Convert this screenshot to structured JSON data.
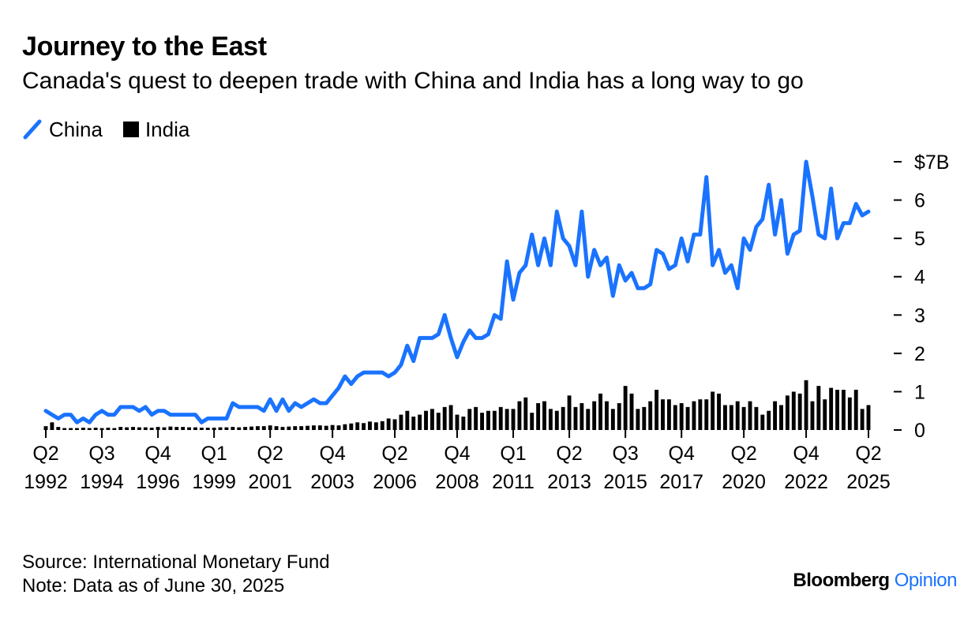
{
  "header": {
    "title": "Journey to the East",
    "subtitle": "Canada's quest to deepen trade with China and India has a long way to go"
  },
  "legend": [
    {
      "label": "China",
      "color": "#1a73ff",
      "shape": "line"
    },
    {
      "label": "India",
      "color": "#000000",
      "shape": "square"
    }
  ],
  "chart_data": {
    "type": "line",
    "title": "Journey to the East",
    "subtitle": "Canada's quest to deepen trade with China and India has a long way to go",
    "xlabel": "",
    "ylabel": "",
    "ylim": [
      0,
      7
    ],
    "y_ticks": [
      {
        "value": 7,
        "label": "$7B"
      },
      {
        "value": 6,
        "label": "6"
      },
      {
        "value": 5,
        "label": "5"
      },
      {
        "value": 4,
        "label": "4"
      },
      {
        "value": 3,
        "label": "3"
      },
      {
        "value": 2,
        "label": "2"
      },
      {
        "value": 1,
        "label": "1"
      },
      {
        "value": 0,
        "label": "0"
      }
    ],
    "x_start": "1992 Q2",
    "x_end": "2025 Q2",
    "x_ticks": [
      {
        "index": 0,
        "q": "Q2",
        "year": "1992"
      },
      {
        "index": 9,
        "q": "Q3",
        "year": "1994"
      },
      {
        "index": 18,
        "q": "Q4",
        "year": "1996"
      },
      {
        "index": 27,
        "q": "Q1",
        "year": "1999"
      },
      {
        "index": 36,
        "q": "Q2",
        "year": "2001"
      },
      {
        "index": 46,
        "q": "Q4",
        "year": "2003"
      },
      {
        "index": 56,
        "q": "Q2",
        "year": "2006"
      },
      {
        "index": 66,
        "q": "Q4",
        "year": "2008"
      },
      {
        "index": 75,
        "q": "Q1",
        "year": "2011"
      },
      {
        "index": 84,
        "q": "Q2",
        "year": "2013"
      },
      {
        "index": 93,
        "q": "Q3",
        "year": "2015"
      },
      {
        "index": 102,
        "q": "Q4",
        "year": "2017"
      },
      {
        "index": 112,
        "q": "Q2",
        "year": "2020"
      },
      {
        "index": 122,
        "q": "Q4",
        "year": "2022"
      },
      {
        "index": 132,
        "q": "Q2",
        "year": "2025"
      }
    ],
    "series": [
      {
        "name": "China",
        "type": "line",
        "color": "#1a73ff",
        "values": [
          0.5,
          0.4,
          0.3,
          0.4,
          0.4,
          0.2,
          0.3,
          0.2,
          0.4,
          0.5,
          0.4,
          0.4,
          0.6,
          0.6,
          0.6,
          0.5,
          0.6,
          0.4,
          0.5,
          0.5,
          0.4,
          0.4,
          0.4,
          0.4,
          0.4,
          0.2,
          0.3,
          0.3,
          0.3,
          0.3,
          0.7,
          0.6,
          0.6,
          0.6,
          0.6,
          0.5,
          0.8,
          0.5,
          0.8,
          0.5,
          0.7,
          0.6,
          0.7,
          0.8,
          0.7,
          0.7,
          0.9,
          1.1,
          1.4,
          1.2,
          1.4,
          1.5,
          1.5,
          1.5,
          1.5,
          1.4,
          1.5,
          1.7,
          2.2,
          1.8,
          2.4,
          2.4,
          2.4,
          2.5,
          3.0,
          2.4,
          1.9,
          2.3,
          2.6,
          2.4,
          2.4,
          2.5,
          3.0,
          2.9,
          4.4,
          3.4,
          4.1,
          4.3,
          5.1,
          4.3,
          5.0,
          4.3,
          5.7,
          5.0,
          4.8,
          4.3,
          5.7,
          4.0,
          4.7,
          4.3,
          4.5,
          3.5,
          4.3,
          3.9,
          4.1,
          3.7,
          3.7,
          3.8,
          4.7,
          4.6,
          4.2,
          4.3,
          5.0,
          4.4,
          5.1,
          5.1,
          6.6,
          4.3,
          4.7,
          4.1,
          4.3,
          3.7,
          5.0,
          4.7,
          5.3,
          5.5,
          6.4,
          5.1,
          6.0,
          4.6,
          5.1,
          5.2,
          7.0,
          6.1,
          5.1,
          5.0,
          6.3,
          5.0,
          5.4,
          5.4,
          5.9,
          5.6,
          5.7
        ]
      },
      {
        "name": "India",
        "type": "bar",
        "color": "#000000",
        "values": [
          0.1,
          0.2,
          0.08,
          0.05,
          0.05,
          0.05,
          0.06,
          0.05,
          0.06,
          0.05,
          0.06,
          0.05,
          0.08,
          0.07,
          0.08,
          0.07,
          0.07,
          0.06,
          0.08,
          0.07,
          0.09,
          0.08,
          0.08,
          0.07,
          0.07,
          0.06,
          0.06,
          0.06,
          0.07,
          0.07,
          0.08,
          0.07,
          0.08,
          0.09,
          0.1,
          0.1,
          0.12,
          0.1,
          0.08,
          0.09,
          0.1,
          0.1,
          0.11,
          0.12,
          0.12,
          0.11,
          0.13,
          0.12,
          0.15,
          0.17,
          0.2,
          0.18,
          0.22,
          0.2,
          0.23,
          0.3,
          0.28,
          0.4,
          0.5,
          0.35,
          0.4,
          0.5,
          0.55,
          0.45,
          0.6,
          0.65,
          0.4,
          0.35,
          0.55,
          0.6,
          0.45,
          0.5,
          0.5,
          0.6,
          0.55,
          0.55,
          0.75,
          0.85,
          0.45,
          0.7,
          0.75,
          0.55,
          0.5,
          0.6,
          0.9,
          0.6,
          0.7,
          0.55,
          0.75,
          0.95,
          0.75,
          0.55,
          0.7,
          1.15,
          0.95,
          0.55,
          0.6,
          0.75,
          1.05,
          0.8,
          0.8,
          0.65,
          0.7,
          0.6,
          0.75,
          0.8,
          0.8,
          1.0,
          0.95,
          0.65,
          0.65,
          0.75,
          0.6,
          0.75,
          0.6,
          0.4,
          0.5,
          0.75,
          0.65,
          0.9,
          1.0,
          0.95,
          1.3,
          0.75,
          1.15,
          0.8,
          1.1,
          1.05,
          1.05,
          0.85,
          1.05,
          0.55,
          0.65
        ]
      }
    ]
  },
  "footer": {
    "source": "Source: International Monetary Fund",
    "note": "Note: Data as of June 30, 2025"
  },
  "brand": {
    "name": "Bloomberg",
    "accent": "Opinion"
  }
}
